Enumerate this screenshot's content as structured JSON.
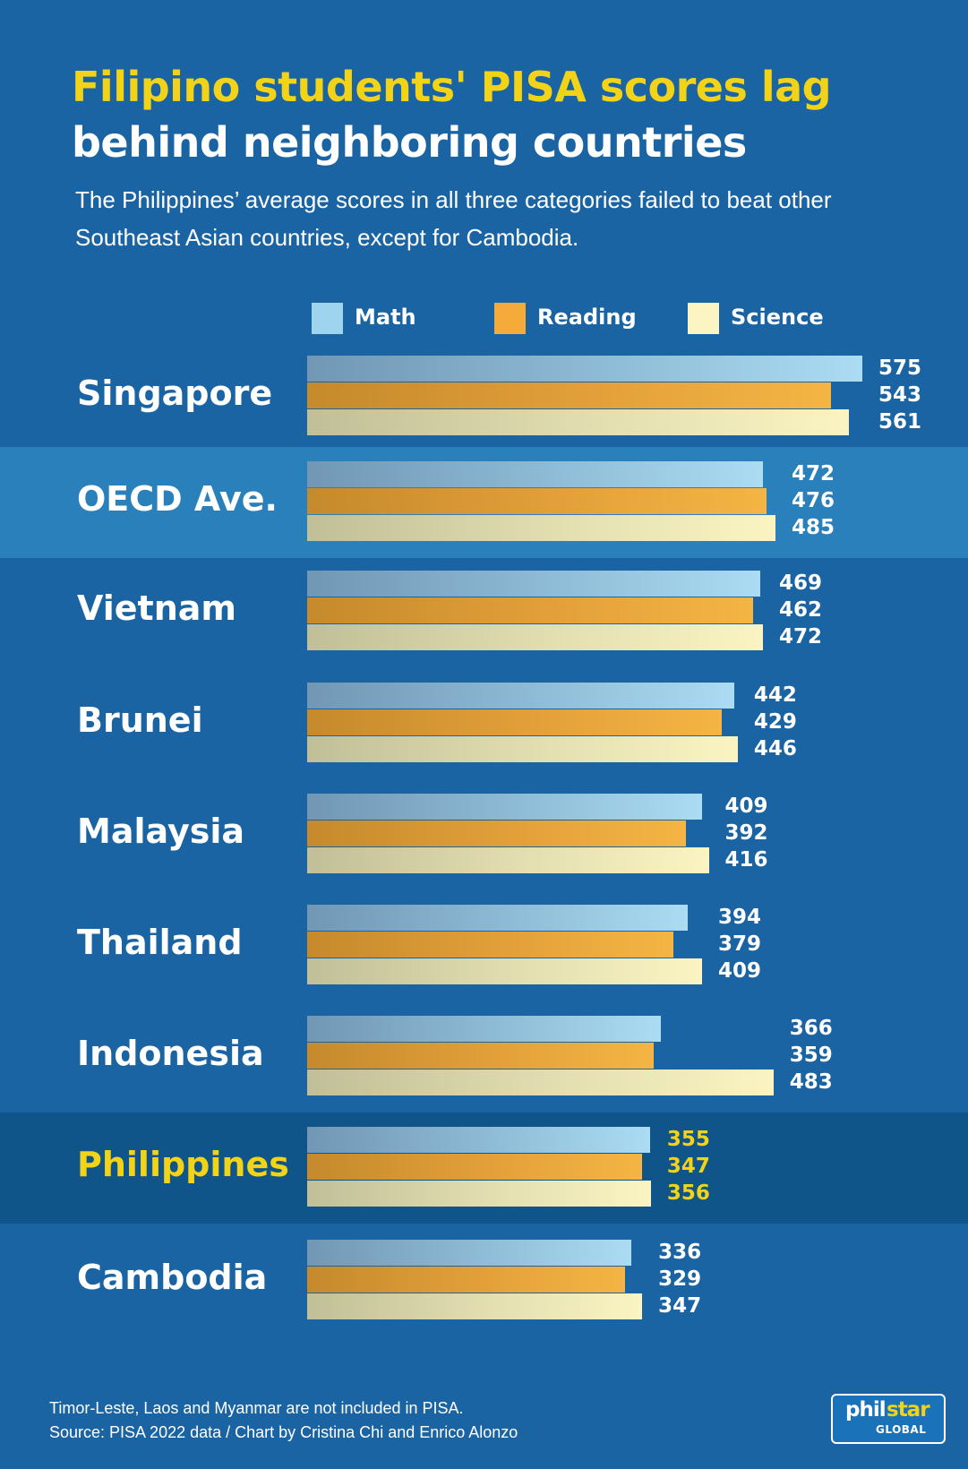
{
  "title_line1": "Filipino students' PISA scores lag",
  "title_line2": "behind neighboring countries",
  "subtitle_line1": "The Philippines’ average scores in all three categories failed to beat other",
  "subtitle_line2": "Southeast Asian countries, except for Cambodia.",
  "legend": [
    {
      "label": "Math",
      "color": "#9fd4ef"
    },
    {
      "label": "Reading",
      "color": "#f4ab3a"
    },
    {
      "label": "Science",
      "color": "#fcf5c3"
    }
  ],
  "colors": {
    "background": "#1b64a3",
    "highlight_band_oecd": "#2a80bb",
    "highlight_band_philippines": "#0f5589",
    "title_yellow": "#f3d317",
    "text_white": "#ffffff"
  },
  "chart_data": {
    "type": "bar",
    "orientation": "horizontal",
    "categories": [
      "Singapore",
      "OECD Ave.",
      "Vietnam",
      "Brunei",
      "Malaysia",
      "Thailand",
      "Indonesia",
      "Philippines",
      "Cambodia"
    ],
    "series": [
      {
        "name": "Math",
        "values": [
          575,
          472,
          469,
          442,
          409,
          394,
          366,
          355,
          336
        ]
      },
      {
        "name": "Reading",
        "values": [
          543,
          476,
          462,
          429,
          392,
          379,
          359,
          347,
          329
        ]
      },
      {
        "name": "Science",
        "values": [
          561,
          485,
          472,
          446,
          416,
          409,
          483,
          356,
          347
        ]
      }
    ],
    "highlighted": {
      "OECD Ave.": "band",
      "Philippines": "band-and-yellow-text"
    },
    "grid": false,
    "legend_position": "top"
  },
  "footnote_line1": "Timor-Leste, Laos and Myanmar are not included in PISA.",
  "footnote_line2": "Source: PISA 2022 data / Chart by Cristina Chi and Enrico Alonzo",
  "logo": {
    "word1": "phil",
    "word2": "star",
    "sub": "GLOBAL"
  }
}
